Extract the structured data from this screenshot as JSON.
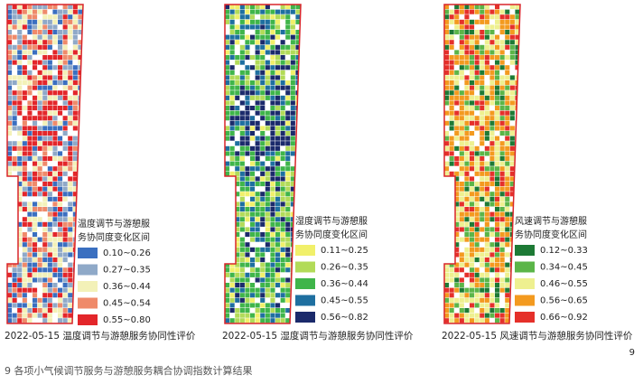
{
  "panels": [
    {
      "legend_title": [
        "温度调节与游憩服",
        "务协同度变化区间"
      ],
      "legend": [
        {
          "label": "0.10~0.26",
          "color": "#3a6fc0"
        },
        {
          "label": "0.27~0.35",
          "color": "#8fa9c8"
        },
        {
          "label": "0.36~0.44",
          "color": "#f3f1b8"
        },
        {
          "label": "0.45~0.54",
          "color": "#ef8a6a"
        },
        {
          "label": "0.55~0.80",
          "color": "#e3262a"
        }
      ],
      "caption": "2022-05-15 温度调节与游憩服务协同性评价"
    },
    {
      "legend_title": [
        "湿度调节与游憩服",
        "务协同度变化区间"
      ],
      "legend": [
        {
          "label": "0.11~0.25",
          "color": "#f1f06a"
        },
        {
          "label": "0.26~0.35",
          "color": "#b2db58"
        },
        {
          "label": "0.36~0.44",
          "color": "#3fb54a"
        },
        {
          "label": "0.45~0.55",
          "color": "#1e6fa0"
        },
        {
          "label": "0.56~0.82",
          "color": "#1b2a6b"
        }
      ],
      "caption": "2022-05-15 湿度调节与游憩服务协同性评价"
    },
    {
      "legend_title": [
        "风速调节与游憩服",
        "务协同度变化区间"
      ],
      "legend": [
        {
          "label": "0.12~0.33",
          "color": "#1d7a35"
        },
        {
          "label": "0.34~0.45",
          "color": "#5bb548"
        },
        {
          "label": "0.46~0.55",
          "color": "#eef090"
        },
        {
          "label": "0.56~0.65",
          "color": "#f39a1f"
        },
        {
          "label": "0.66~0.92",
          "color": "#e5302a"
        }
      ],
      "caption": "2022-05-15 风速调节与游憩服务协同性评价"
    }
  ],
  "page_number": "9",
  "figure_caption": "9 各项小气候调节服务与游憩服务耦合协调指数计算结果"
}
